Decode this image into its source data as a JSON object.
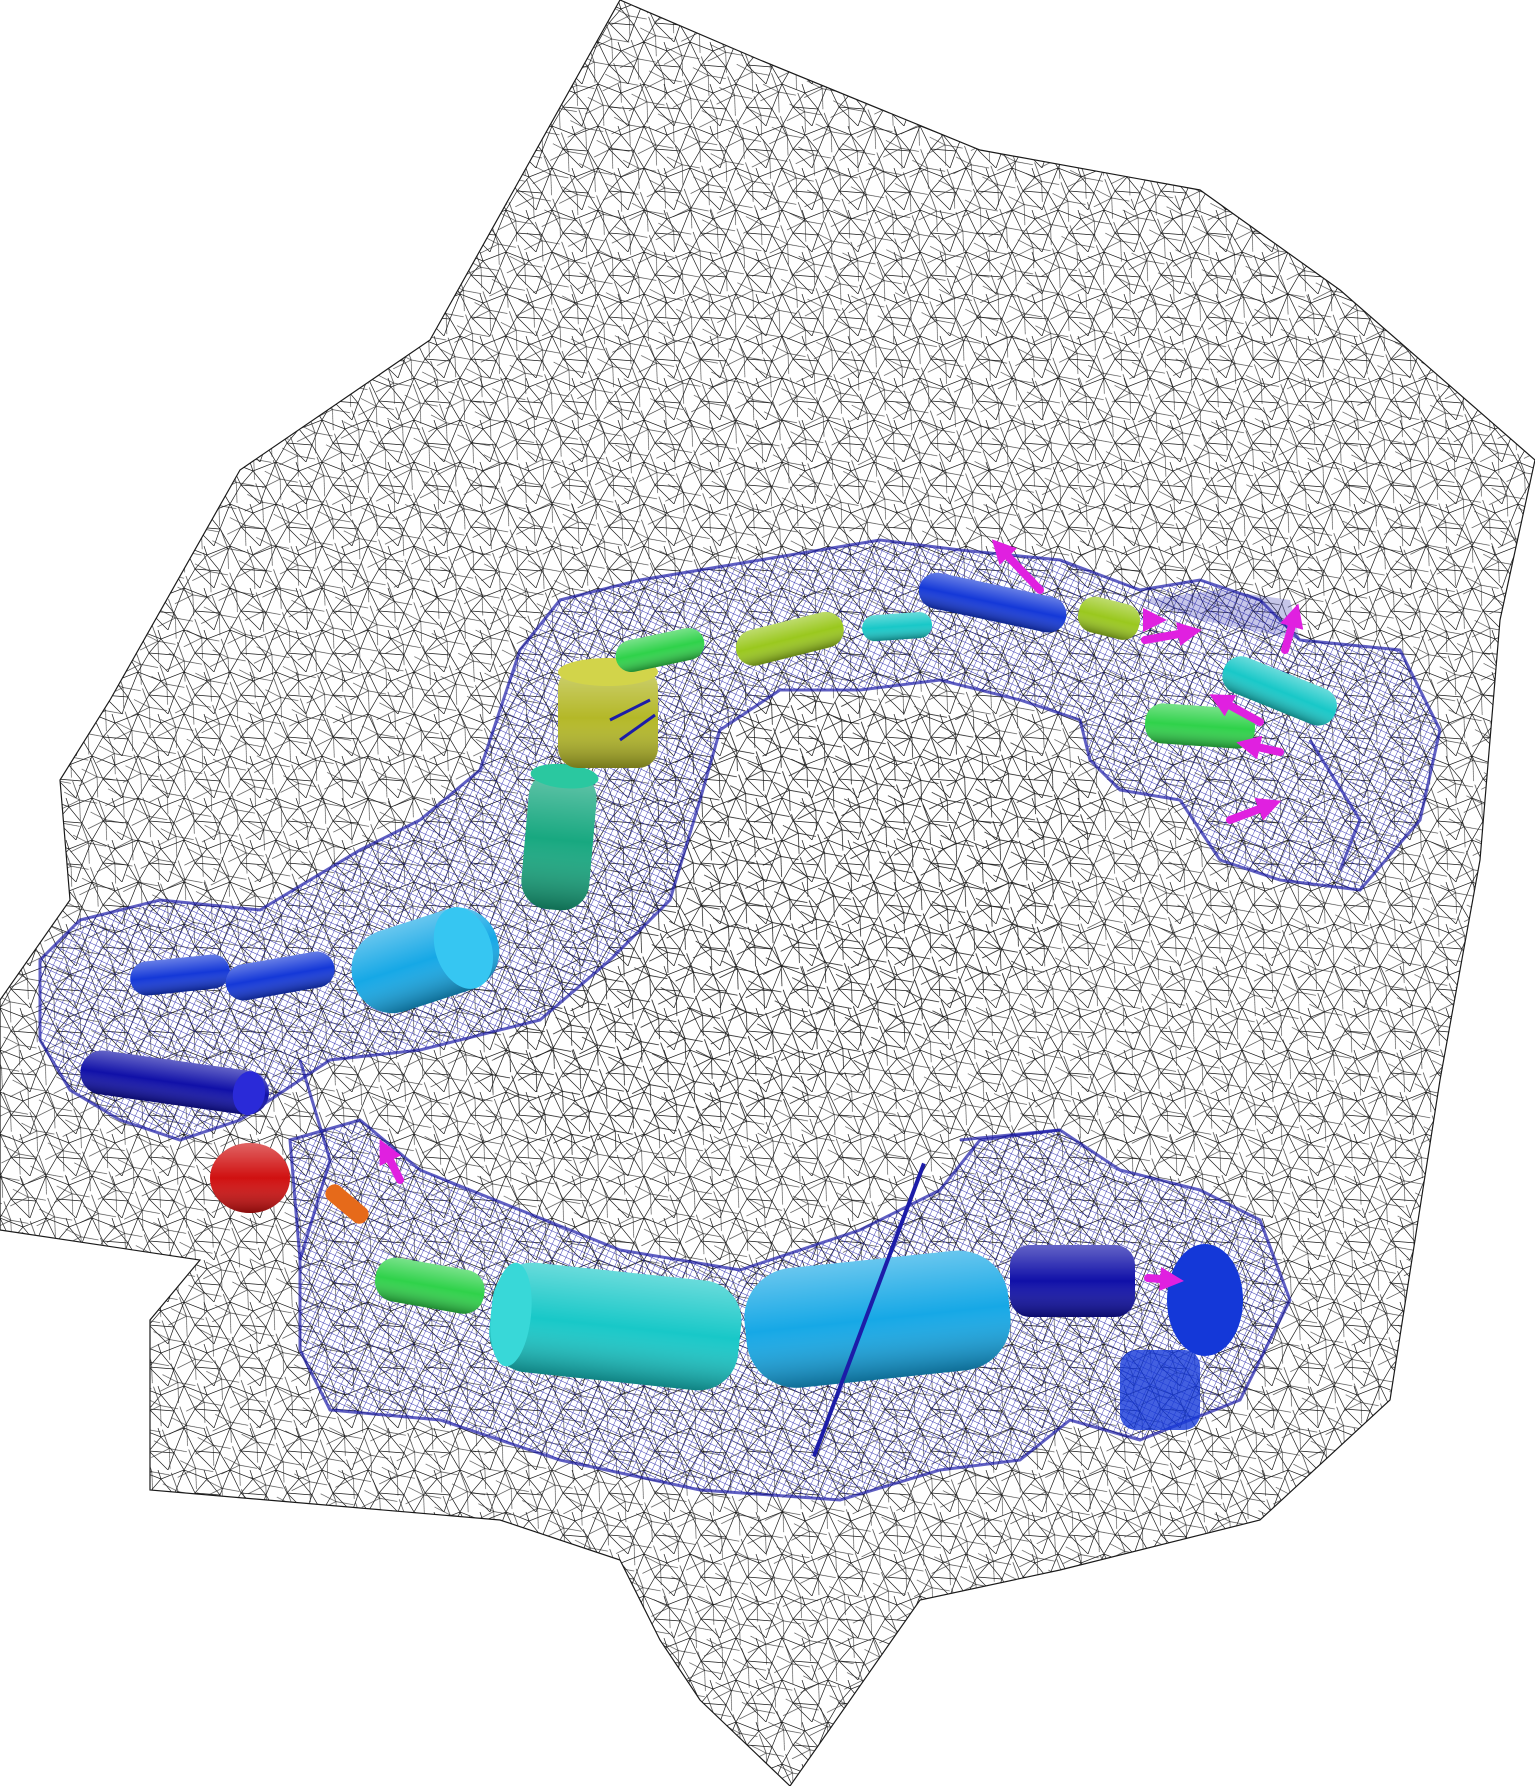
{
  "scene": {
    "background": "#ffffff",
    "colors": {
      "outer_wire": "#1a1a1a",
      "channel_wire": "#1c1ca8",
      "red": "#d01010",
      "orange": "#e66a1a",
      "green": "#2fd24a",
      "yellow_green": "#9ac81e",
      "olive": "#b4b828",
      "teal": "#18a880",
      "cyan": "#18c8c8",
      "sky": "#16a8e6",
      "blue": "#1438d8",
      "navy": "#1010a8",
      "magenta": "#e020e0"
    },
    "objects": [
      {
        "name": "red-sphere",
        "kind": "sphere",
        "color": "red"
      },
      {
        "name": "orange-small-cylinder",
        "kind": "cylinder",
        "color": "orange"
      },
      {
        "name": "navy-cylinder-left-lower",
        "kind": "cylinder",
        "color": "navy"
      },
      {
        "name": "blue-cylinder-left-upper-a",
        "kind": "cylinder",
        "color": "blue"
      },
      {
        "name": "blue-cylinder-left-upper-b",
        "kind": "cylinder",
        "color": "blue"
      },
      {
        "name": "sky-cylinder-left",
        "kind": "cylinder",
        "color": "sky"
      },
      {
        "name": "teal-cylinder-vertical",
        "kind": "cylinder",
        "color": "teal"
      },
      {
        "name": "olive-cylinder",
        "kind": "cylinder",
        "color": "olive"
      },
      {
        "name": "green-cylinder-top-a",
        "kind": "cylinder",
        "color": "green"
      },
      {
        "name": "yellow-green-cylinder-top",
        "kind": "cylinder",
        "color": "yellow_green"
      },
      {
        "name": "cyan-cylinder-top",
        "kind": "cylinder",
        "color": "cyan"
      },
      {
        "name": "blue-cylinder-top",
        "kind": "cylinder",
        "color": "blue"
      },
      {
        "name": "yellow-green-cylinder-top-right",
        "kind": "cylinder",
        "color": "yellow_green"
      },
      {
        "name": "green-cylinder-right",
        "kind": "cylinder",
        "color": "green"
      },
      {
        "name": "cyan-cylinder-right",
        "kind": "cylinder",
        "color": "cyan"
      },
      {
        "name": "green-cylinder-bottom",
        "kind": "cylinder",
        "color": "green"
      },
      {
        "name": "cyan-cylinder-bottom",
        "kind": "cylinder",
        "color": "cyan"
      },
      {
        "name": "sky-cylinder-bottom",
        "kind": "cylinder",
        "color": "sky"
      },
      {
        "name": "navy-cylinder-bottom-right",
        "kind": "cylinder",
        "color": "navy"
      },
      {
        "name": "blue-disc-bottom-right",
        "kind": "cylinder",
        "color": "blue"
      },
      {
        "name": "magenta-arrow",
        "kind": "arrow",
        "color": "magenta",
        "count": 9
      }
    ]
  }
}
